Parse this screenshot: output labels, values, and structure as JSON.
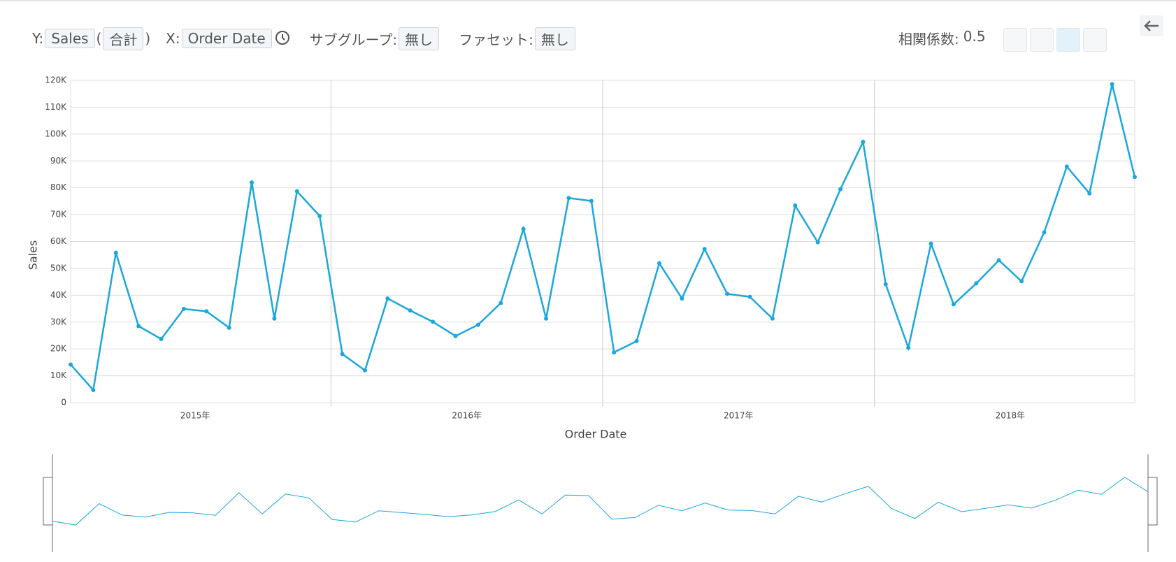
{
  "toolbar": {
    "y_label": "Y:",
    "y_field": "Sales",
    "agg_open": "(",
    "agg": "合計",
    "agg_close": ")",
    "x_label": "X:",
    "x_field": "Order Date",
    "subgroup_label": "サブグループ:",
    "subgroup_value": "無し",
    "facet_label": "ファセット:",
    "facet_value": "無し",
    "correlation_label": "相関係数:",
    "correlation": 0.5
  },
  "chart_data": {
    "type": "line",
    "x_label": "Order Date",
    "y_label": "Sales",
    "color": "#1aa7dc",
    "grid": true,
    "categories": [
      null,
      null,
      null,
      null,
      null,
      null,
      null,
      null,
      null,
      null,
      null,
      null,
      null,
      null,
      null,
      null,
      null,
      null,
      null,
      null,
      null,
      null,
      null,
      null,
      null,
      null,
      null,
      null,
      null,
      null,
      null,
      null,
      null,
      null,
      null,
      null,
      null,
      null,
      null,
      null,
      null,
      null,
      null,
      null,
      null,
      null,
      null,
      null
    ],
    "year_labels": [
      "2015年",
      "2016年",
      "2017年",
      "2018年"
    ],
    "values": [
      14200,
      4700,
      55800,
      28500,
      23700,
      34900,
      34000,
      27900,
      82000,
      31300,
      78700,
      69500,
      18100,
      12000,
      38800,
      34300,
      30100,
      24800,
      29000,
      37100,
      64700,
      31300,
      76200,
      75100,
      18700,
      22900,
      51900,
      38800,
      57200,
      40500,
      39400,
      31300,
      73400,
      59700,
      79500,
      97100,
      44100,
      20400,
      59200,
      36600,
      44400,
      53000,
      45200,
      63400,
      87900,
      77900,
      118600,
      84000
    ],
    "ylim": [
      0,
      120000
    ],
    "yticks": [
      0,
      {
        "value": 10000,
        "label": "10K"
      },
      {
        "value": 20000,
        "label": "20K"
      },
      {
        "value": 30000,
        "label": "30K"
      },
      {
        "value": 40000,
        "label": "40K"
      },
      {
        "value": 50000,
        "label": "50K"
      },
      {
        "value": 60000,
        "label": "60K"
      },
      {
        "value": 70000,
        "label": "70K"
      },
      {
        "value": 80000,
        "label": "80K"
      },
      {
        "value": 90000,
        "label": "90K"
      },
      {
        "value": 100000,
        "label": "100K"
      },
      {
        "value": 110000,
        "label": "110K"
      },
      {
        "value": 120000,
        "label": "120K"
      }
    ]
  }
}
